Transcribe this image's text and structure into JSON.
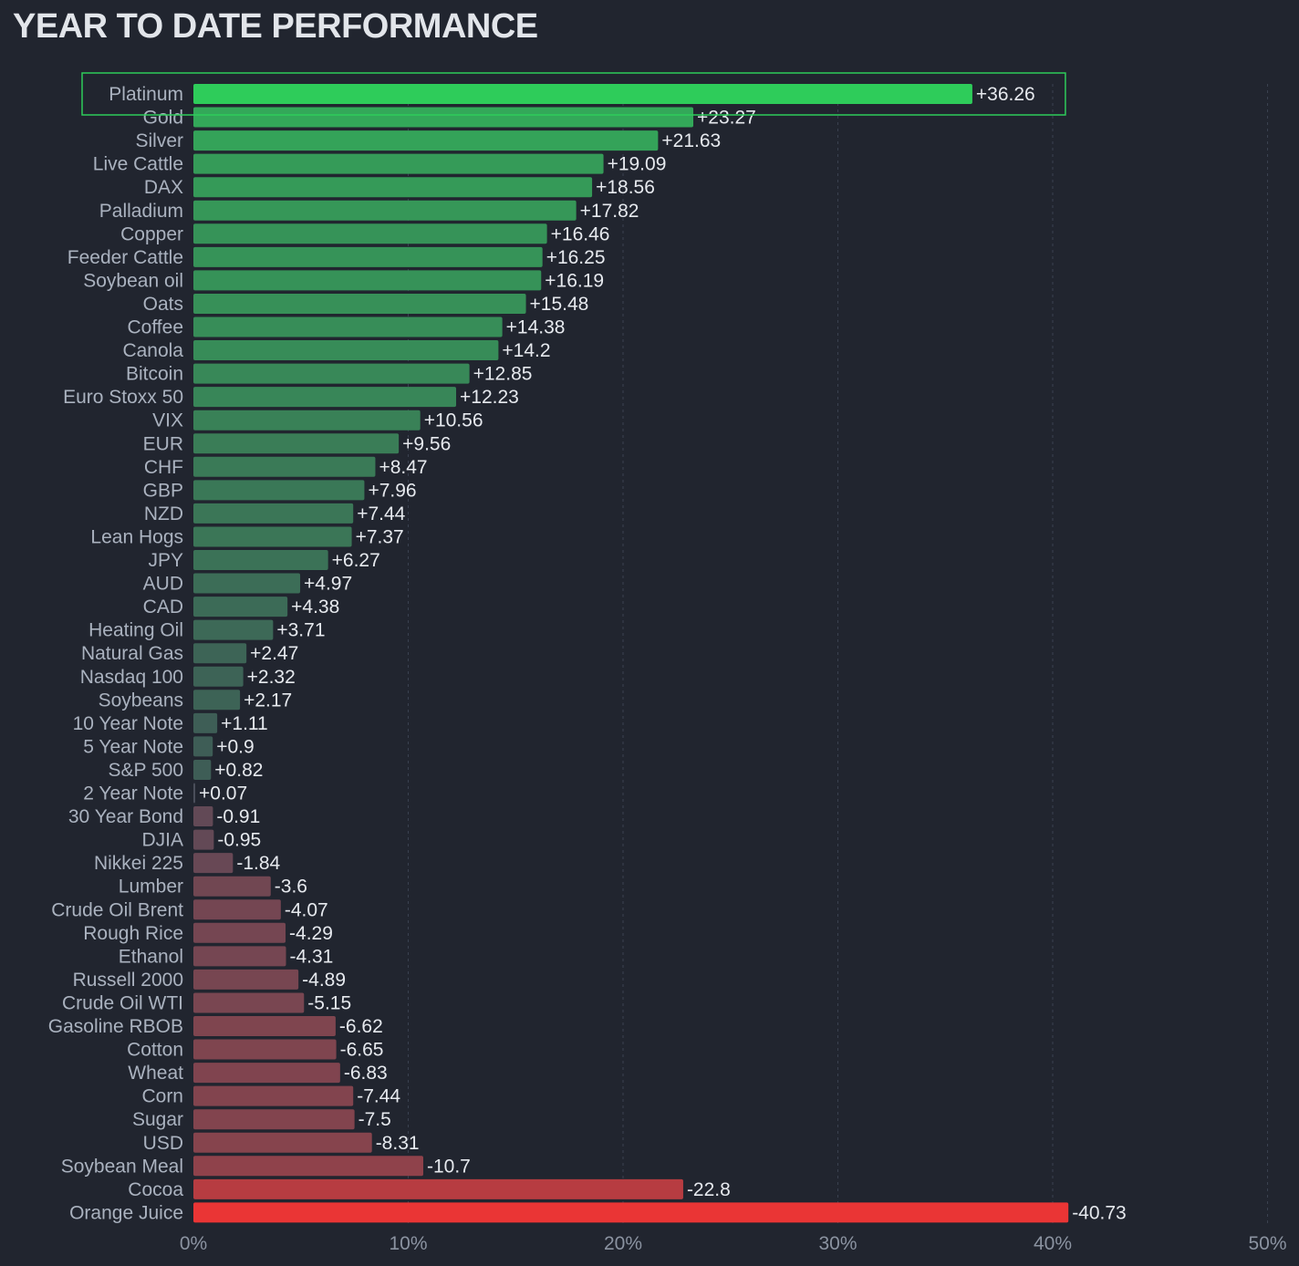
{
  "chart_data": {
    "type": "bar",
    "orientation": "horizontal",
    "title": "YEAR TO DATE PERFORMANCE",
    "xlabel": "",
    "ylabel": "",
    "xlim": [
      0,
      50
    ],
    "x_ticks": [
      "0%",
      "10%",
      "20%",
      "30%",
      "40%",
      "50%"
    ],
    "x_tick_values": [
      0,
      10,
      20,
      30,
      40,
      50
    ],
    "bar_length": "absolute value",
    "highlighted_category": "Platinum",
    "colors": {
      "positive_high": "#2ecc5a",
      "positive_low": "#3f5856",
      "neutral": "#4a4e5a",
      "negative_low": "#5a4a58",
      "negative_high": "#ea3535",
      "highlight_border": "#2ecc5a",
      "grid": "#3a4150"
    },
    "categories": [
      "Platinum",
      "Gold",
      "Silver",
      "Live Cattle",
      "DAX",
      "Palladium",
      "Copper",
      "Feeder Cattle",
      "Soybean oil",
      "Oats",
      "Coffee",
      "Canola",
      "Bitcoin",
      "Euro Stoxx 50",
      "VIX",
      "EUR",
      "CHF",
      "GBP",
      "NZD",
      "Lean Hogs",
      "JPY",
      "AUD",
      "CAD",
      "Heating Oil",
      "Natural Gas",
      "Nasdaq 100",
      "Soybeans",
      "10 Year Note",
      "5 Year Note",
      "S&P 500",
      "2 Year Note",
      "30 Year Bond",
      "DJIA",
      "Nikkei 225",
      "Lumber",
      "Crude Oil Brent",
      "Rough Rice",
      "Ethanol",
      "Russell 2000",
      "Crude Oil WTI",
      "Gasoline RBOB",
      "Cotton",
      "Wheat",
      "Corn",
      "Sugar",
      "USD",
      "Soybean Meal",
      "Cocoa",
      "Orange Juice"
    ],
    "values": [
      36.26,
      23.27,
      21.63,
      19.09,
      18.56,
      17.82,
      16.46,
      16.25,
      16.19,
      15.48,
      14.38,
      14.2,
      12.85,
      12.23,
      10.56,
      9.56,
      8.47,
      7.96,
      7.44,
      7.37,
      6.27,
      4.97,
      4.38,
      3.71,
      2.47,
      2.32,
      2.17,
      1.11,
      0.9,
      0.82,
      0.07,
      -0.91,
      -0.95,
      -1.84,
      -3.6,
      -4.07,
      -4.29,
      -4.31,
      -4.89,
      -5.15,
      -6.62,
      -6.65,
      -6.83,
      -7.44,
      -7.5,
      -8.31,
      -10.7,
      -22.8,
      -40.73
    ],
    "value_labels": [
      "+36.26",
      "+23.27",
      "+21.63",
      "+19.09",
      "+18.56",
      "+17.82",
      "+16.46",
      "+16.25",
      "+16.19",
      "+15.48",
      "+14.38",
      "+14.2",
      "+12.85",
      "+12.23",
      "+10.56",
      "+9.56",
      "+8.47",
      "+7.96",
      "+7.44",
      "+7.37",
      "+6.27",
      "+4.97",
      "+4.38",
      "+3.71",
      "+2.47",
      "+2.32",
      "+2.17",
      "+1.11",
      "+0.9",
      "+0.82",
      "+0.07",
      "-0.91",
      "-0.95",
      "-1.84",
      "-3.6",
      "-4.07",
      "-4.29",
      "-4.31",
      "-4.89",
      "-5.15",
      "-6.62",
      "-6.65",
      "-6.83",
      "-7.44",
      "-7.5",
      "-8.31",
      "-10.7",
      "-22.8",
      "-40.73"
    ]
  }
}
